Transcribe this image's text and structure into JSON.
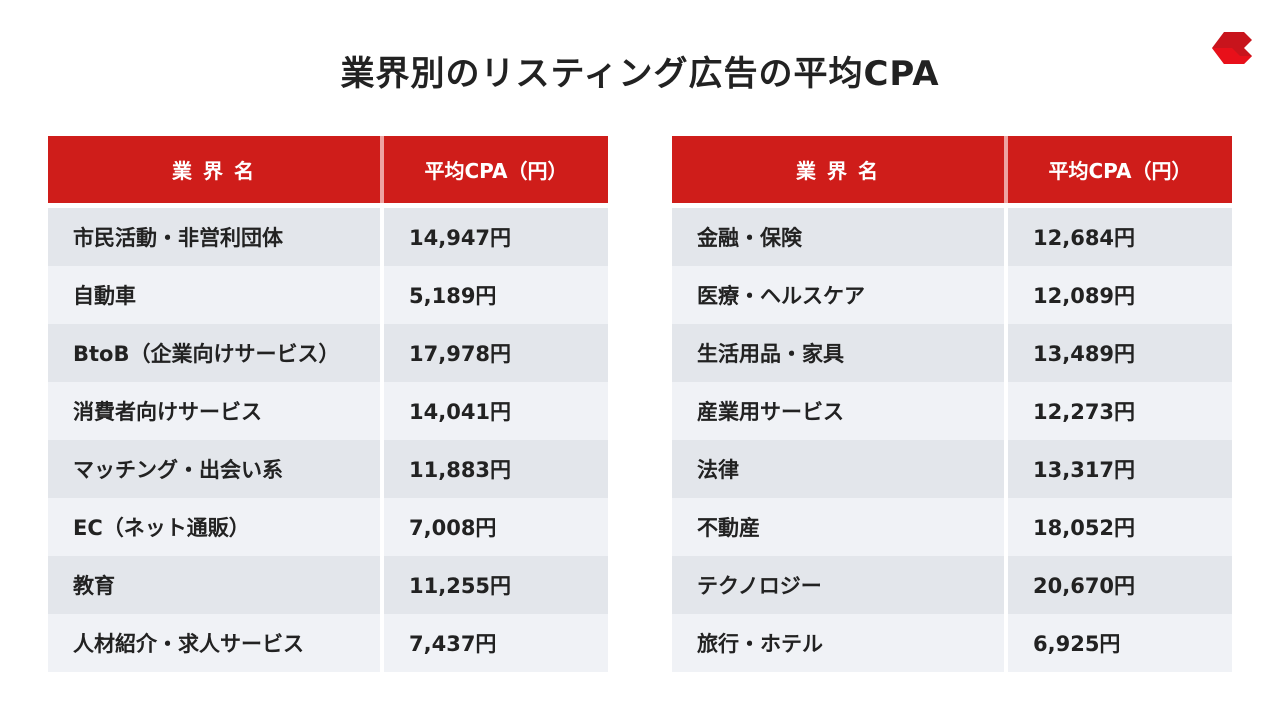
{
  "title": "業界別のリスティング広告の平均CPA",
  "accent_color": "#cf1d1a",
  "logo": {
    "icon": "red-chevron-logo"
  },
  "headers": {
    "industry": "業 界 名",
    "cpa": "平均CPA（円）"
  },
  "left_table": [
    {
      "industry": "市民活動・非営利団体",
      "cpa": "14,947円"
    },
    {
      "industry": "自動車",
      "cpa": "5,189円"
    },
    {
      "industry": "BtoB（企業向けサービス）",
      "cpa": "17,978円"
    },
    {
      "industry": "消費者向けサービス",
      "cpa": "14,041円"
    },
    {
      "industry": "マッチング・出会い系",
      "cpa": "11,883円"
    },
    {
      "industry": "EC（ネット通販）",
      "cpa": "7,008円"
    },
    {
      "industry": "教育",
      "cpa": "11,255円"
    },
    {
      "industry": "人材紹介・求人サービス",
      "cpa": "7,437円"
    }
  ],
  "right_table": [
    {
      "industry": "金融・保険",
      "cpa": "12,684円"
    },
    {
      "industry": "医療・ヘルスケア",
      "cpa": "12,089円"
    },
    {
      "industry": "生活用品・家具",
      "cpa": "13,489円"
    },
    {
      "industry": "産業用サービス",
      "cpa": "12,273円"
    },
    {
      "industry": "法律",
      "cpa": "13,317円"
    },
    {
      "industry": "不動産",
      "cpa": "18,052円"
    },
    {
      "industry": "テクノロジー",
      "cpa": "20,670円"
    },
    {
      "industry": "旅行・ホテル",
      "cpa": "6,925円"
    }
  ]
}
